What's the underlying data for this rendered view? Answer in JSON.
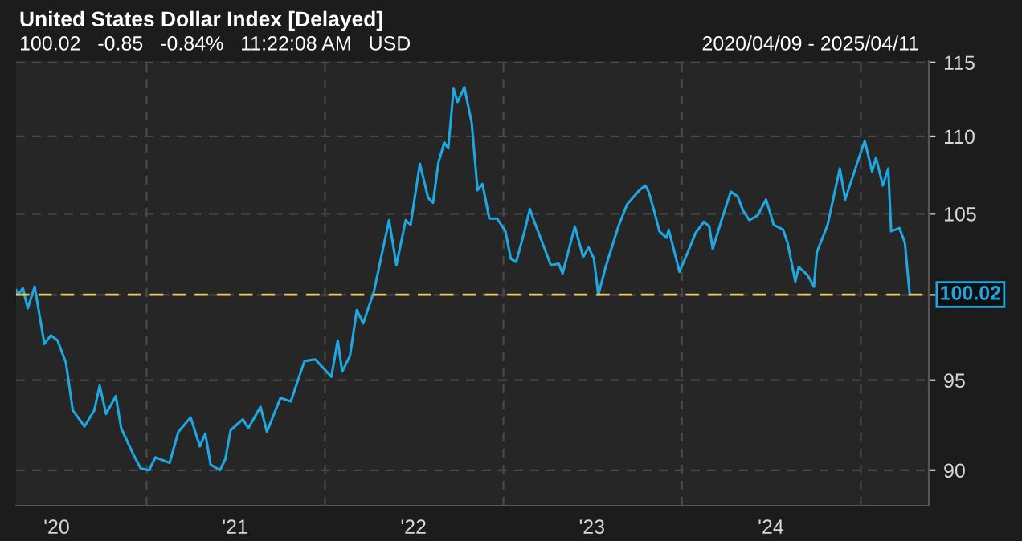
{
  "chart_data": {
    "type": "line",
    "title": "United States Dollar Index [Delayed]",
    "subtitle": "100.02   -0.85   -0.84%   11:22:08 AM   USD",
    "annotations": [
      "2020/04/09 - 2025/04/11"
    ],
    "x": [
      "2020-04-09",
      "2020-04-12",
      "2020-04-23",
      "2020-05-03",
      "2020-05-17",
      "2020-06-06",
      "2020-06-19",
      "2020-07-03",
      "2020-07-20",
      "2020-08-03",
      "2020-08-27",
      "2020-09-16",
      "2020-09-27",
      "2020-10-10",
      "2020-10-30",
      "2020-11-10",
      "2020-12-04",
      "2020-12-20",
      "2021-01-06",
      "2021-01-19",
      "2021-02-17",
      "2021-03-07",
      "2021-04-01",
      "2021-04-20",
      "2021-05-01",
      "2021-05-12",
      "2021-05-31",
      "2021-06-11",
      "2021-06-22",
      "2021-07-17",
      "2021-07-28",
      "2021-08-22",
      "2021-09-04",
      "2021-10-02",
      "2021-10-23",
      "2021-11-20",
      "2021-12-12",
      "2022-01-14",
      "2022-01-27",
      "2022-02-05",
      "2022-02-21",
      "2022-03-07",
      "2022-03-20",
      "2022-04-11",
      "2022-04-28",
      "2022-05-12",
      "2022-05-27",
      "2022-06-15",
      "2022-06-25",
      "2022-07-14",
      "2022-07-31",
      "2022-08-10",
      "2022-08-21",
      "2022-09-02",
      "2022-09-10",
      "2022-09-21",
      "2022-09-29",
      "2022-10-13",
      "2022-10-28",
      "2022-11-09",
      "2022-11-19",
      "2022-12-03",
      "2022-12-19",
      "2023-01-05",
      "2023-01-16",
      "2023-01-27",
      "2023-02-13",
      "2023-02-24",
      "2023-03-04",
      "2023-04-08",
      "2023-04-24",
      "2023-05-02",
      "2023-05-27",
      "2023-06-13",
      "2023-06-24",
      "2023-07-05",
      "2023-07-14",
      "2023-07-29",
      "2023-08-24",
      "2023-09-11",
      "2023-10-06",
      "2023-10-18",
      "2023-10-25",
      "2023-11-05",
      "2023-11-16",
      "2023-11-30",
      "2023-12-05",
      "2023-12-27",
      "2024-01-13",
      "2024-01-29",
      "2024-02-15",
      "2024-02-26",
      "2024-03-04",
      "2024-03-22",
      "2024-04-10",
      "2024-04-24",
      "2024-05-05",
      "2024-05-18",
      "2024-06-04",
      "2024-06-21",
      "2024-07-07",
      "2024-07-26",
      "2024-08-04",
      "2024-08-20",
      "2024-08-27",
      "2024-09-14",
      "2024-09-27",
      "2024-10-03",
      "2024-10-25",
      "2024-11-19",
      "2024-11-30",
      "2024-12-24",
      "2025-01-09",
      "2025-01-24",
      "2025-02-01",
      "2025-02-15",
      "2025-02-26",
      "2025-03-04",
      "2025-03-21",
      "2025-04-01",
      "2025-04-11"
    ],
    "series": [
      {
        "color": "#1ea7e1",
        "values": [
          100.3,
          100.0,
          100.4,
          99.2,
          100.5,
          97.1,
          97.6,
          97.3,
          96.0,
          93.3,
          92.4,
          93.3,
          94.7,
          93.1,
          94.1,
          92.3,
          90.9,
          90.1,
          90.0,
          90.7,
          90.4,
          92.1,
          92.9,
          91.3,
          92.0,
          90.3,
          90.0,
          90.6,
          92.2,
          92.8,
          92.3,
          93.5,
          92.1,
          94.0,
          93.8,
          96.1,
          96.2,
          95.2,
          97.3,
          95.5,
          96.4,
          99.1,
          98.3,
          100.2,
          102.6,
          104.6,
          101.8,
          104.6,
          104.3,
          108.2,
          106.0,
          105.7,
          108.3,
          109.6,
          109.2,
          113.2,
          112.3,
          113.3,
          110.9,
          106.5,
          106.9,
          104.7,
          104.7,
          103.9,
          102.2,
          102.0,
          103.9,
          105.3,
          104.6,
          101.8,
          101.9,
          101.3,
          104.2,
          102.3,
          102.9,
          102.2,
          100.0,
          101.7,
          104.2,
          105.6,
          106.5,
          106.8,
          106.4,
          105.2,
          103.9,
          103.5,
          104.0,
          101.4,
          102.6,
          103.8,
          104.5,
          104.2,
          102.8,
          104.6,
          106.4,
          106.1,
          105.2,
          104.6,
          104.9,
          105.9,
          104.3,
          104.0,
          103.2,
          100.8,
          101.7,
          101.2,
          100.5,
          102.6,
          104.3,
          107.9,
          105.9,
          108.2,
          109.7,
          107.7,
          108.6,
          106.8,
          107.9,
          103.9,
          104.1,
          103.2,
          100.02
        ]
      }
    ],
    "log": true,
    "xlim": [
      "2020-04-09",
      "2025-05-20"
    ],
    "xticks": [
      {
        "value": "2020-07-01",
        "label": "'20"
      },
      {
        "value": "2021-01-01",
        "label": null
      },
      {
        "value": "2021-07-01",
        "label": "'21"
      },
      {
        "value": "2022-01-01",
        "label": null
      },
      {
        "value": "2022-07-01",
        "label": "'22"
      },
      {
        "value": "2023-01-01",
        "label": null
      },
      {
        "value": "2023-07-01",
        "label": "'23"
      },
      {
        "value": "2024-01-01",
        "label": null
      },
      {
        "value": "2024-07-01",
        "label": "'24"
      },
      {
        "value": "2025-01-01",
        "label": null
      }
    ],
    "ylim": [
      88.1,
      115.1
    ],
    "yticks": [
      90,
      95,
      {
        "value": 100,
        "label": null
      },
      105,
      110,
      115
    ],
    "grid": true,
    "legend": false,
    "line_style": "solid",
    "ref_lines": [
      {
        "axis": "y",
        "value": 100.02,
        "label": "100.02",
        "color": "#e8c860",
        "line_style": "dashed"
      }
    ]
  }
}
